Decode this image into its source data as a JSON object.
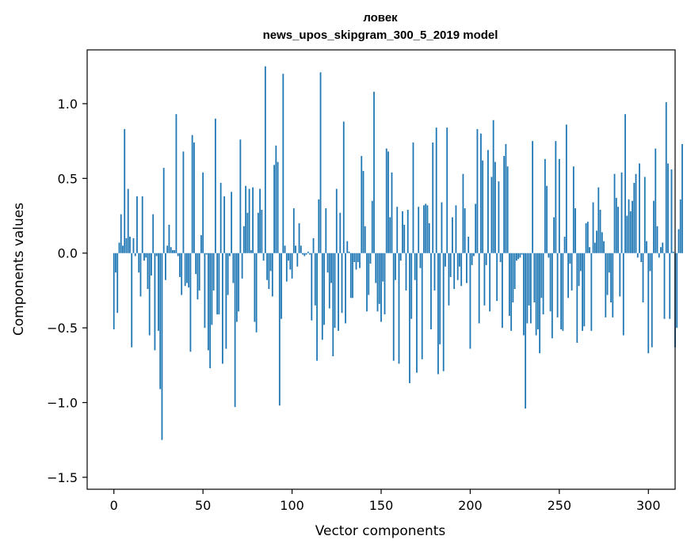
{
  "chart_data": {
    "type": "bar",
    "title_line1": "ловек",
    "title_line2": "news_upos_skipgram_300_5_2019 model",
    "xlabel": "Vector components",
    "ylabel": "Components values",
    "xlim": [
      -15,
      315
    ],
    "ylim": [
      -1.58,
      1.36
    ],
    "xticks": [
      0,
      50,
      100,
      150,
      200,
      250,
      300
    ],
    "xtick_labels": [
      "0",
      "50",
      "100",
      "150",
      "200",
      "250",
      "300"
    ],
    "yticks": [
      -1.5,
      -1.0,
      -0.5,
      0.0,
      0.5,
      1.0
    ],
    "ytick_labels": [
      "−1.5",
      "−1.0",
      "−0.5",
      "0.0",
      "0.5",
      "1.0"
    ],
    "bar_color": "#1f77b4",
    "grid": false,
    "values": [
      -0.51,
      -0.13,
      -0.4,
      0.07,
      0.26,
      0.05,
      0.83,
      0.1,
      0.43,
      0.11,
      -0.63,
      0.1,
      -0.02,
      0.38,
      -0.13,
      -0.29,
      0.38,
      -0.05,
      -0.03,
      -0.24,
      -0.55,
      -0.15,
      0.26,
      -0.65,
      -0.02,
      -0.52,
      -0.91,
      -1.25,
      0.57,
      -0.18,
      0.05,
      0.19,
      0.04,
      0.02,
      0.02,
      0.93,
      -0.02,
      -0.16,
      -0.28,
      0.68,
      -0.22,
      -0.2,
      -0.23,
      -0.66,
      0.79,
      0.74,
      -0.14,
      -0.31,
      -0.25,
      0.12,
      0.54,
      -0.5,
      -0.01,
      -0.65,
      -0.77,
      -0.48,
      -0.25,
      0.9,
      -0.41,
      -0.41,
      0.47,
      -0.74,
      0.38,
      -0.64,
      -0.28,
      -0.02,
      0.41,
      -0.2,
      -1.03,
      -0.46,
      -0.39,
      0.76,
      -0.17,
      0.18,
      0.45,
      0.27,
      0.43,
      0.02,
      0.44,
      -0.46,
      -0.53,
      0.27,
      0.43,
      0.29,
      -0.05,
      1.25,
      -0.18,
      -0.24,
      -0.12,
      -0.29,
      0.59,
      0.72,
      0.61,
      -1.02,
      -0.44,
      1.2,
      0.05,
      -0.19,
      -0.05,
      -0.11,
      -0.17,
      0.3,
      0.05,
      -0.09,
      0.2,
      0.05,
      -0.01,
      -0.02,
      -0.01,
      0.01,
      -0.01,
      -0.45,
      0.1,
      -0.35,
      -0.72,
      0.36,
      1.21,
      -0.58,
      -0.48,
      0.3,
      -0.13,
      -0.37,
      -0.2,
      -0.69,
      -0.5,
      0.43,
      -0.52,
      0.27,
      -0.4,
      0.88,
      -0.47,
      0.08,
      0.01,
      -0.3,
      -0.3,
      -0.06,
      -0.11,
      -0.06,
      -0.1,
      0.65,
      0.55,
      0.18,
      -0.39,
      -0.28,
      -0.07,
      0.35,
      1.08,
      -0.2,
      -0.39,
      -0.34,
      -0.46,
      -0.19,
      -0.41,
      0.7,
      0.68,
      0.24,
      0.54,
      -0.72,
      -0.18,
      0.31,
      -0.74,
      -0.05,
      0.28,
      0.19,
      -0.25,
      0.29,
      -0.87,
      -0.44,
      0.74,
      -0.18,
      -0.8,
      0.31,
      -0.1,
      -0.71,
      0.32,
      0.33,
      0.32,
      0.2,
      -0.51,
      0.74,
      -0.25,
      0.84,
      -0.81,
      -0.61,
      0.34,
      -0.79,
      -0.09,
      0.84,
      -0.35,
      -0.16,
      0.24,
      -0.24,
      0.32,
      -0.18,
      -0.09,
      -0.22,
      0.53,
      0.3,
      -0.2,
      0.11,
      -0.64,
      -0.08,
      -0.02,
      0.33,
      0.83,
      -0.47,
      0.8,
      0.62,
      -0.35,
      -0.08,
      0.69,
      -0.39,
      0.51,
      0.89,
      0.61,
      -0.32,
      0.48,
      -0.06,
      -0.5,
      0.65,
      0.73,
      0.58,
      -0.42,
      -0.52,
      -0.33,
      -0.24,
      -0.05,
      -0.04,
      -0.03,
      -0.01,
      -0.55,
      -1.04,
      -0.47,
      -0.35,
      -0.47,
      0.75,
      -0.33,
      -0.55,
      -0.51,
      -0.67,
      -0.3,
      -0.41,
      0.63,
      0.45,
      -0.03,
      -0.39,
      -0.57,
      0.24,
      0.75,
      -0.43,
      0.63,
      -0.51,
      -0.52,
      0.11,
      0.86,
      -0.3,
      -0.07,
      -0.25,
      0.58,
      0.3,
      -0.6,
      -0.22,
      -0.12,
      -0.52,
      -0.49,
      0.2,
      0.21,
      0.04,
      -0.52,
      0.34,
      0.07,
      0.15,
      0.44,
      0.29,
      0.14,
      0.08,
      -0.43,
      -0.28,
      -0.13,
      -0.33,
      -0.43,
      0.53,
      0.37,
      0.31,
      -0.29,
      0.54,
      -0.55,
      0.93,
      0.25,
      0.36,
      0.28,
      0.35,
      0.47,
      0.53,
      -0.03,
      0.6,
      -0.06,
      -0.33,
      0.51,
      0.08,
      -0.67,
      -0.12,
      -0.63,
      0.35,
      0.7,
      0.18,
      -0.03,
      0.04,
      0.07,
      -0.44,
      1.01,
      0.6,
      -0.44,
      0.56,
      0.01,
      -0.63,
      -0.5,
      0.16,
      0.36,
      0.73
    ]
  }
}
